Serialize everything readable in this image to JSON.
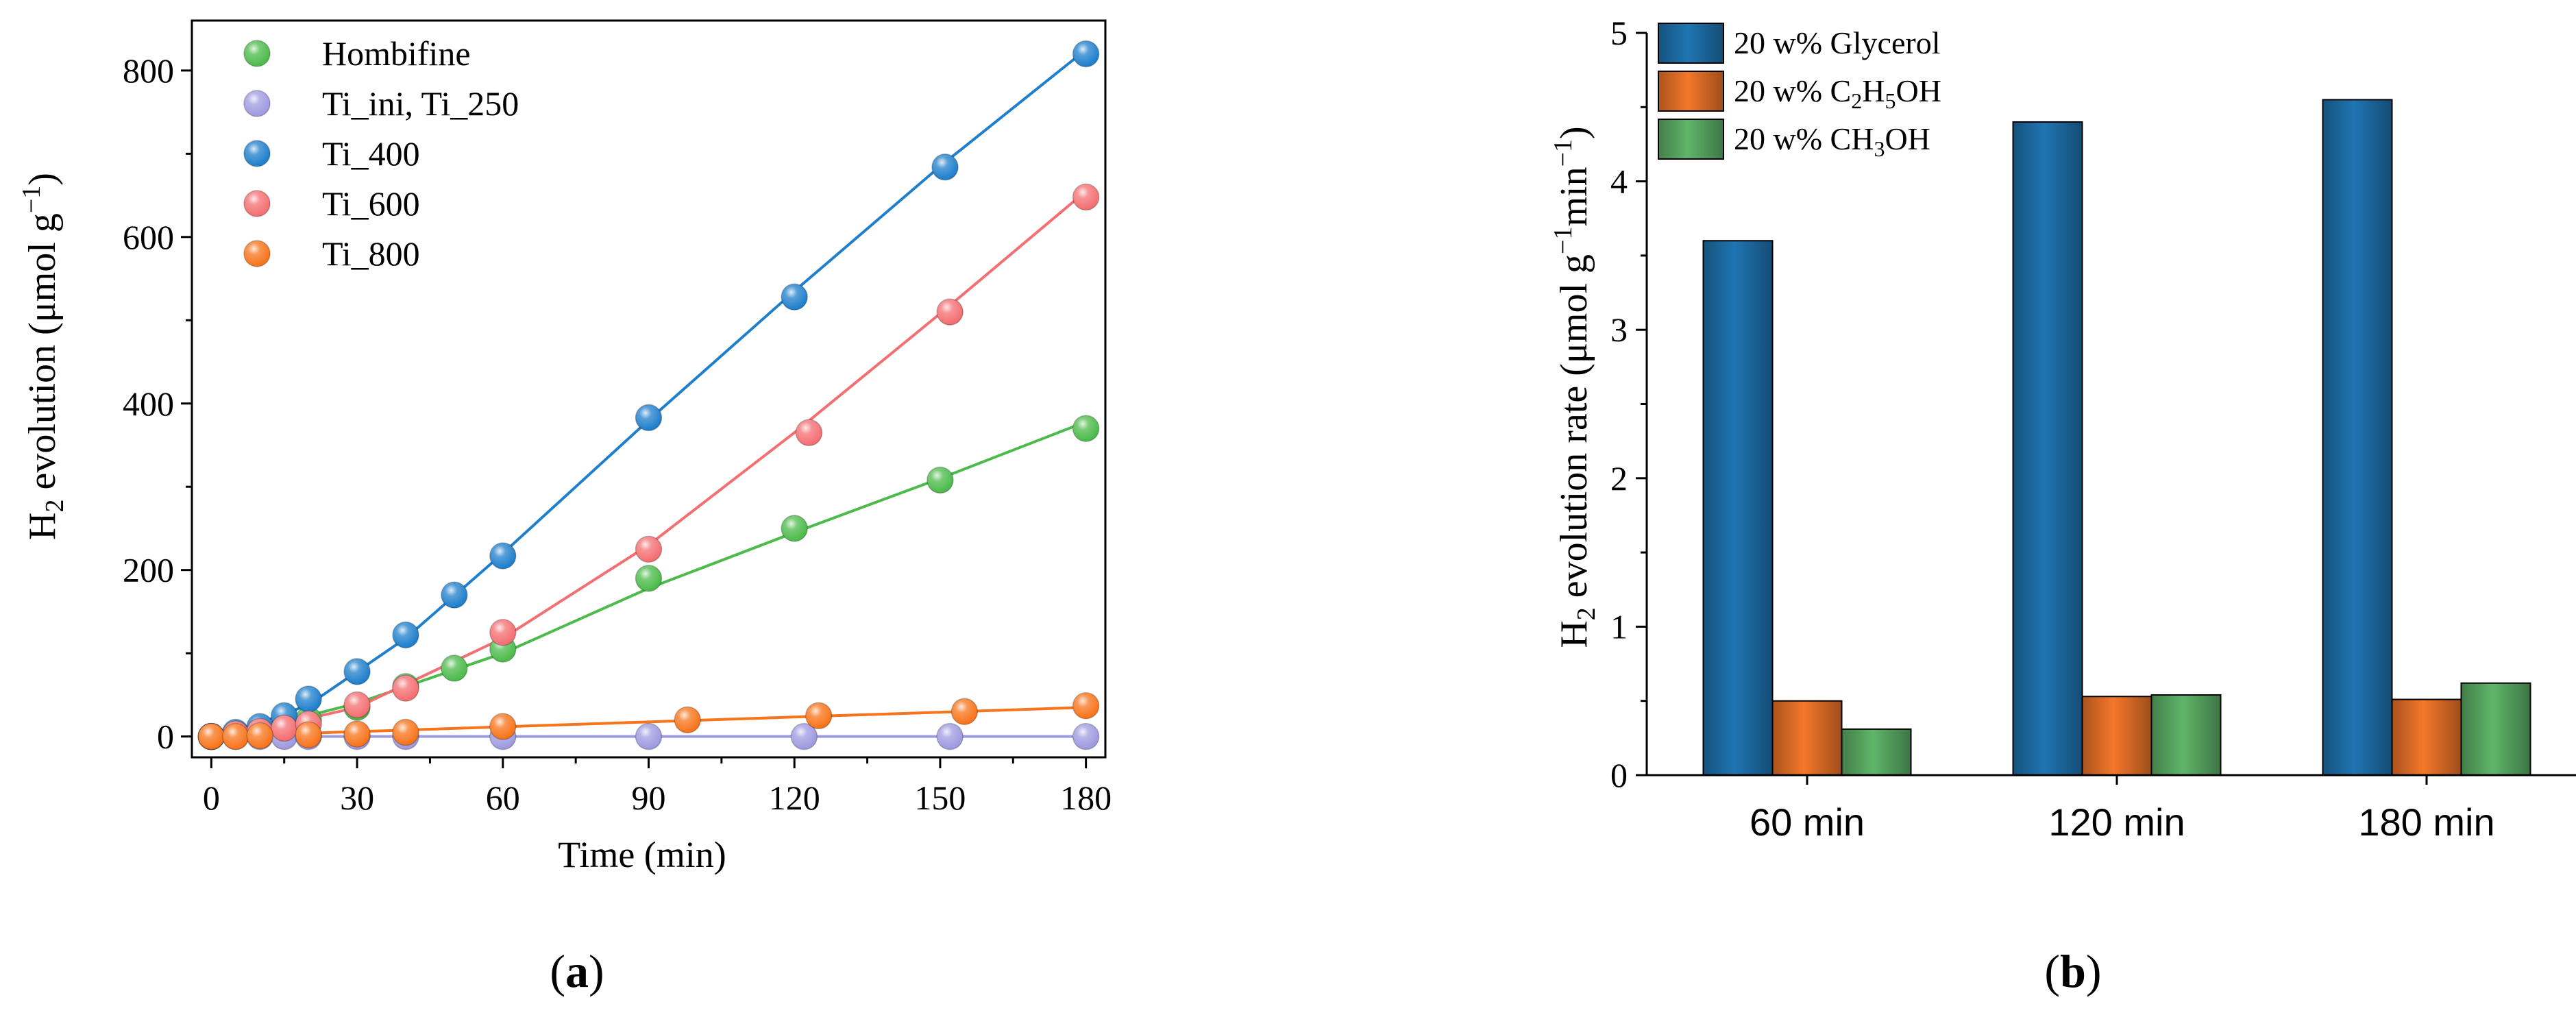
{
  "chart_data": [
    {
      "type": "scatter",
      "panel_label": "(a)",
      "panel_letter": "a",
      "xlabel": "Time (min)",
      "ylabel_parts": {
        "h": "H",
        "sub": "2",
        "text": " evolution (μmol g",
        "sup": "−1",
        "close": ")"
      },
      "xlim": [
        -4,
        184
      ],
      "ylim": [
        -25,
        860
      ],
      "xticks": [
        0,
        30,
        60,
        90,
        120,
        150,
        180
      ],
      "yticks": [
        0,
        200,
        400,
        600,
        800
      ],
      "legend_position": "top-left",
      "series": [
        {
          "name": "Hombifine",
          "color": "#4cbb4a",
          "x": [
            0,
            5,
            10,
            15,
            20,
            30,
            40,
            50,
            60,
            90,
            120,
            150,
            180
          ],
          "y": [
            0,
            4,
            8,
            13,
            20,
            35,
            60,
            82,
            105,
            190,
            250,
            308,
            370
          ],
          "fit_x": [
            0,
            30,
            60,
            90,
            120,
            150,
            180
          ],
          "fit_y": [
            -5,
            40,
            100,
            178,
            245,
            310,
            378
          ]
        },
        {
          "name": "Ti_ini, Ti_250",
          "color": "#9e9be0",
          "x": [
            0,
            5,
            10,
            15,
            20,
            30,
            40,
            60,
            90,
            122,
            152,
            180
          ],
          "y": [
            0,
            0,
            0,
            0,
            0,
            0,
            0,
            0,
            0,
            0,
            0,
            0
          ],
          "fit_x": [
            0,
            180
          ],
          "fit_y": [
            0,
            0
          ]
        },
        {
          "name": "Ti_400",
          "color": "#1f7fcc",
          "x": [
            0,
            5,
            10,
            15,
            20,
            30,
            40,
            50,
            60,
            90,
            120,
            151,
            180
          ],
          "y": [
            0,
            5,
            12,
            25,
            45,
            78,
            122,
            170,
            217,
            383,
            528,
            684,
            820
          ],
          "fit_x": [
            0,
            20,
            40,
            60,
            90,
            120,
            150,
            180
          ],
          "fit_y": [
            -5,
            38,
            118,
            220,
            380,
            535,
            685,
            825
          ]
        },
        {
          "name": "Ti_600",
          "color": "#f46f72",
          "x": [
            0,
            5,
            10,
            15,
            20,
            30,
            40,
            60,
            90,
            123,
            152,
            180
          ],
          "y": [
            0,
            3,
            6,
            10,
            15,
            38,
            58,
            125,
            225,
            365,
            510,
            648
          ],
          "fit_x": [
            0,
            30,
            60,
            90,
            120,
            150,
            180
          ],
          "fit_y": [
            -5,
            35,
            118,
            230,
            365,
            508,
            655
          ]
        },
        {
          "name": "Ti_800",
          "color": "#f8741b",
          "x": [
            0,
            5,
            10,
            20,
            30,
            40,
            60,
            98,
            125,
            155,
            180
          ],
          "y": [
            0,
            0,
            1,
            2,
            3,
            5,
            12,
            20,
            25,
            30,
            37
          ],
          "fit_x": [
            0,
            180
          ],
          "fit_y": [
            0,
            35
          ]
        }
      ]
    },
    {
      "type": "bar",
      "panel_label": "(b)",
      "panel_letter": "b",
      "xlabel": "",
      "ylabel_parts": {
        "h": "H",
        "sub": "2",
        "text": " evolution rate (μmol g",
        "sup": "−1",
        "mid": "min",
        "sup2": "−1",
        "close": ")"
      },
      "categories": [
        "60 min",
        "120 min",
        "180 min"
      ],
      "ylim": [
        0,
        5
      ],
      "yticks": [
        0,
        1,
        2,
        3,
        4,
        5
      ],
      "legend_position": "top-left",
      "series": [
        {
          "name": "20 w% Glycerol",
          "label_parts": [
            "20 w% Glycerol"
          ],
          "color": "#1f75b3",
          "values": [
            3.6,
            4.4,
            4.55
          ]
        },
        {
          "name": "20 w% C2H5OH",
          "label_parts": [
            "20 w% C",
            "2",
            "H",
            "5",
            "OH"
          ],
          "color": "#f4772a",
          "values": [
            0.5,
            0.53,
            0.51
          ]
        },
        {
          "name": "20 w% CH3OH",
          "label_parts": [
            "20 w% CH",
            "3",
            "OH"
          ],
          "color": "#5fb56a",
          "values": [
            0.31,
            0.54,
            0.62
          ]
        }
      ]
    }
  ]
}
